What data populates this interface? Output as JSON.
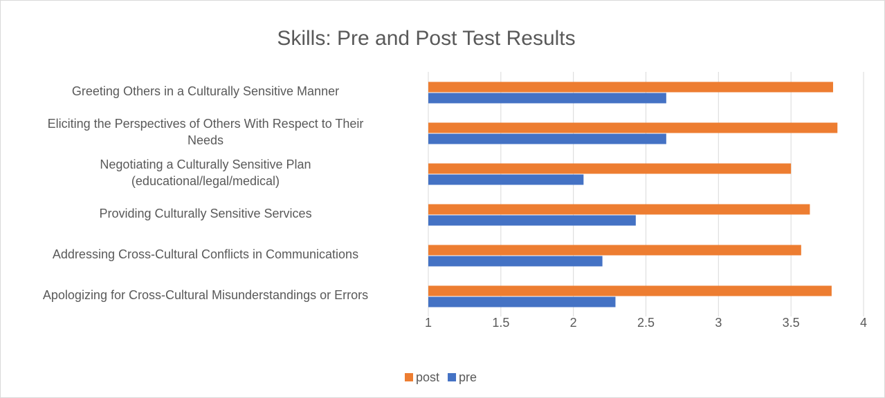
{
  "chart_data": {
    "type": "bar",
    "orientation": "horizontal",
    "title": "Skills: Pre and Post Test Results",
    "categories": [
      "Greeting Others in a Culturally Sensitive Manner",
      "Eliciting the Perspectives of Others With Respect to Their\nNeeds",
      "Negotiating a Culturally Sensitive Plan\n(educational/legal/medical)",
      "Providing Culturally Sensitive Services",
      "Addressing Cross-Cultural Conflicts in Communications",
      "Apologizing for Cross-Cultural Misunderstandings or Errors"
    ],
    "series": [
      {
        "name": "post",
        "color": "#ed7d31",
        "values": [
          3.79,
          3.82,
          3.5,
          3.63,
          3.57,
          3.78
        ]
      },
      {
        "name": "pre",
        "color": "#4472c4",
        "values": [
          2.64,
          2.64,
          2.07,
          2.43,
          2.2,
          2.29
        ]
      }
    ],
    "xlim": [
      1,
      4
    ],
    "xticks": [
      1,
      1.5,
      2,
      2.5,
      3,
      3.5,
      4
    ],
    "grid": true,
    "legend": "bottom"
  }
}
